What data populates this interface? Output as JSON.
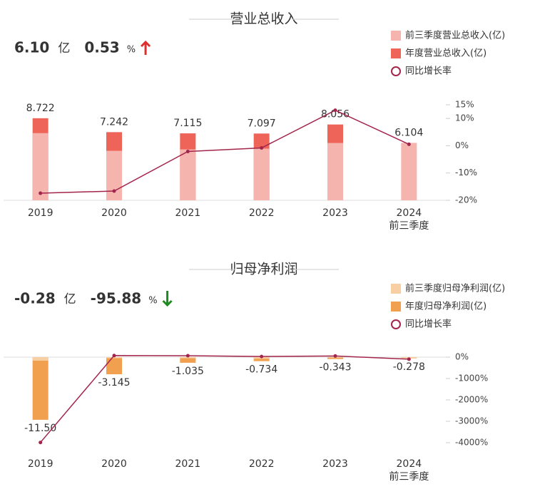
{
  "chart_data": [
    {
      "type": "bar-line",
      "title": "营业总收入",
      "summary": {
        "value": "6.10",
        "unit": "亿",
        "pct": "0.53",
        "pct_unit": "%",
        "color": "#e02d2d",
        "trend": "up"
      },
      "categories": [
        "2019",
        "2020",
        "2021",
        "2022",
        "2023",
        "2024"
      ],
      "category_note": "前三季度",
      "series": [
        {
          "name": "前三季度营业总收入(亿)",
          "color": "#f6b4ae",
          "values": [
            7.14,
            5.26,
            5.41,
            5.49,
            6.09,
            6.104
          ]
        },
        {
          "name": "年度营业总收入(亿)",
          "color": "#ee6459",
          "values": [
            8.722,
            7.242,
            7.115,
            7.097,
            8.056,
            null
          ]
        },
        {
          "name": "同比增长率",
          "color": "#a3254b",
          "axis": "y2",
          "values": [
            -17.4,
            -16.6,
            -2.1,
            -0.8,
            13.0,
            0.53
          ]
        }
      ],
      "ylim": [
        0,
        10.15
      ],
      "y2lim": [
        -20,
        15
      ],
      "y2ticks": [
        {
          "value": 15,
          "label": "15%"
        },
        {
          "value": 10,
          "label": "10%"
        },
        {
          "value": 0,
          "label": "0%"
        },
        {
          "value": -10,
          "label": "-10%"
        },
        {
          "value": -20,
          "label": "-20%"
        }
      ],
      "legend": "top-right"
    },
    {
      "type": "bar-line",
      "title": "归母净利润",
      "summary": {
        "value": "-0.28",
        "unit": "亿",
        "pct": "-95.88",
        "pct_unit": "%",
        "color": "#1f8a1f",
        "trend": "down"
      },
      "categories": [
        "2019",
        "2020",
        "2021",
        "2022",
        "2023",
        "2024"
      ],
      "category_note": "前三季度",
      "series": [
        {
          "name": "前三季度归母净利润(亿)",
          "color": "#f8cfa2",
          "values": [
            -0.65,
            -0.2,
            -0.2,
            -0.3,
            -0.1,
            -0.278
          ]
        },
        {
          "name": "年度归母净利润(亿)",
          "color": "#f0a04e",
          "values": [
            -11.5,
            -3.145,
            -1.035,
            -0.734,
            -0.343,
            null
          ],
          "value_labels": [
            "-11.50",
            "-3.145",
            "-1.035",
            "-0.734",
            "-0.343",
            null
          ]
        },
        {
          "name": "同比增长率",
          "color": "#a3254b",
          "axis": "y2",
          "values": [
            -3990,
            73,
            67,
            29,
            53,
            -95.88
          ]
        }
      ],
      "ylim": [
        -15.7,
        0
      ],
      "y2lim": [
        -4000,
        0
      ],
      "y2ticks": [
        {
          "value": 0,
          "label": "0%"
        },
        {
          "value": -1000,
          "label": "-1000%"
        },
        {
          "value": -2000,
          "label": "-2000%"
        },
        {
          "value": -3000,
          "label": "-3000%"
        },
        {
          "value": -4000,
          "label": "-4000%"
        }
      ],
      "legend": "top-right"
    }
  ]
}
